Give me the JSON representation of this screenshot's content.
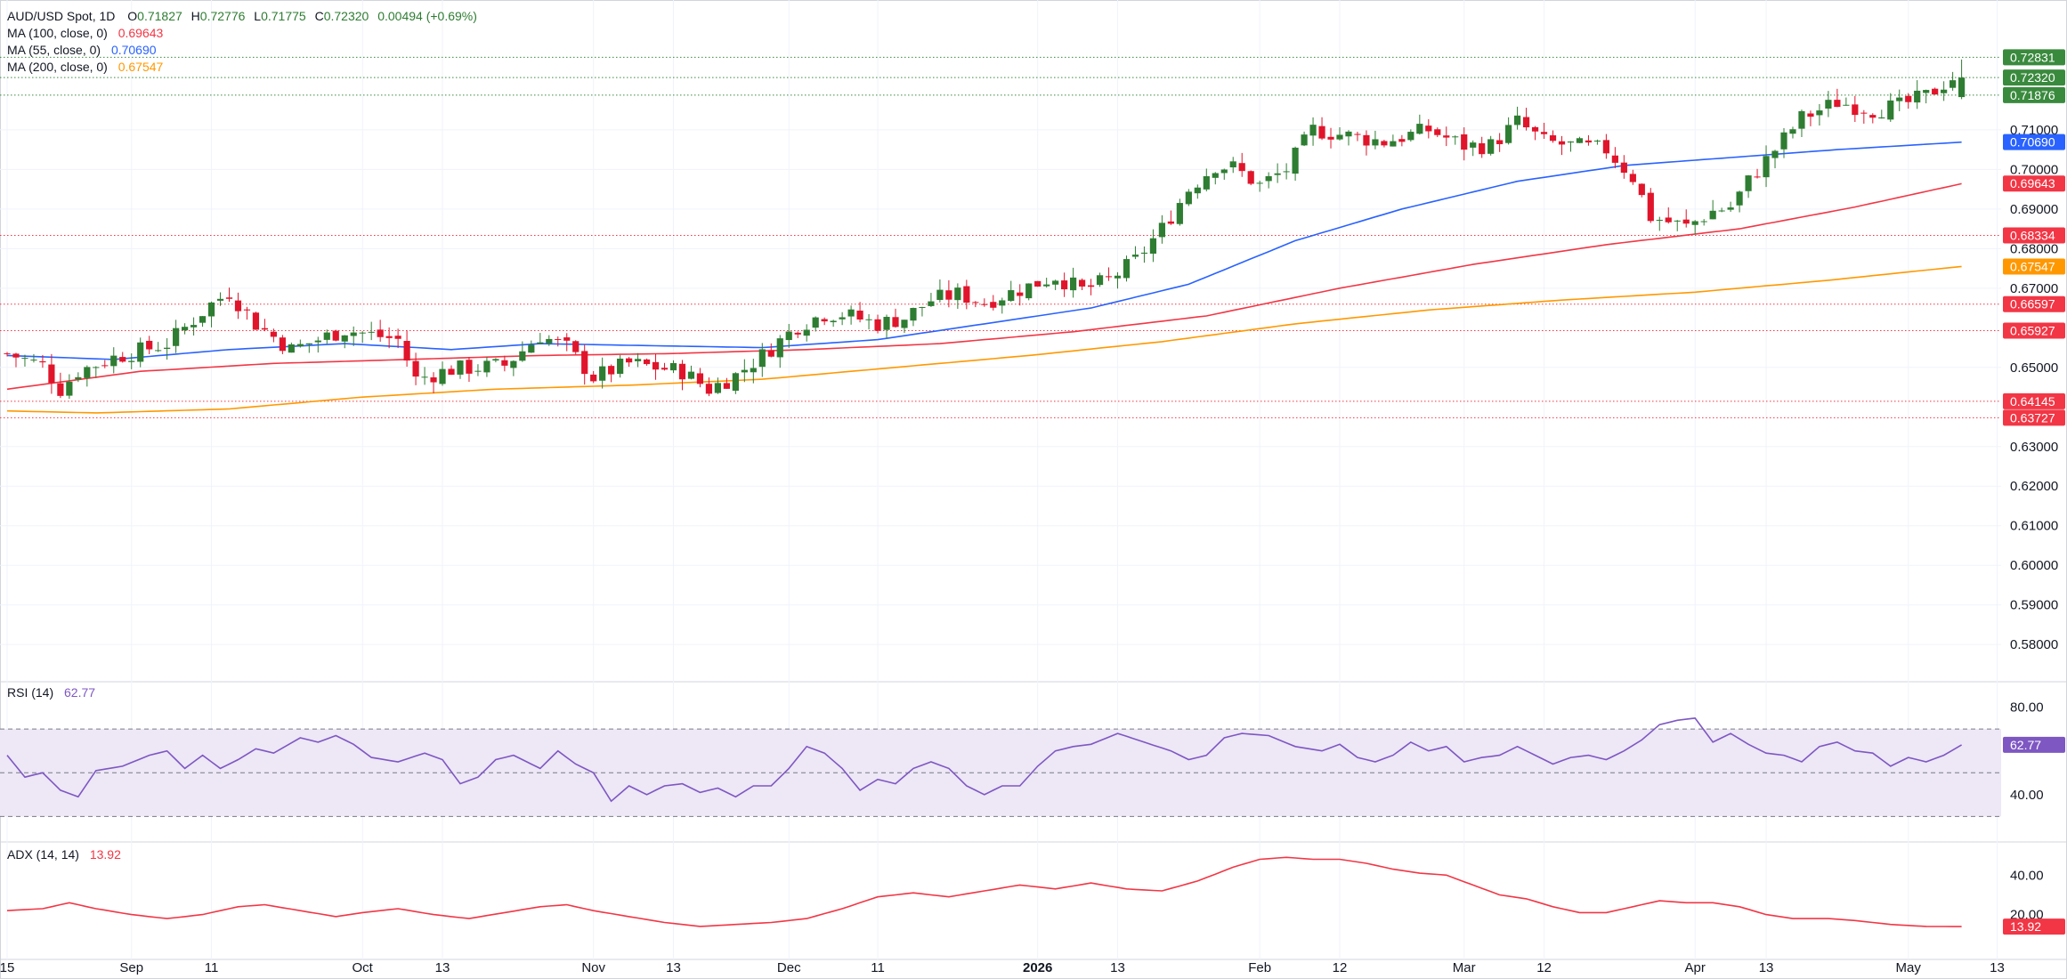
{
  "header": {
    "symbol": "AUD/USD Spot, 1D",
    "ohlc": [
      {
        "label": "O",
        "value": "0.71827"
      },
      {
        "label": "H",
        "value": "0.72776"
      },
      {
        "label": "L",
        "value": "0.71775"
      },
      {
        "label": "C",
        "value": "0.72320"
      }
    ],
    "change": "0.00494 (+0.69%)"
  },
  "indicators": [
    {
      "label": "MA (100, close, 0)",
      "value": "0.69643",
      "color": "#f23645"
    },
    {
      "label": "MA (55, close, 0)",
      "value": "0.70690",
      "color": "#2962ff"
    },
    {
      "label": "MA (200, close, 0)",
      "value": "0.67547",
      "color": "#ff9800"
    }
  ],
  "colors": {
    "up": "#26a69a",
    "up_candle": "#2e7d32",
    "down": "#e0152b",
    "rsi_line": "#7e57c2",
    "rsi_band": "#ede7f6",
    "adx_line": "#f23645",
    "grid": "#f0f3fa",
    "tag_green": "#3a8a3e",
    "tag_red": "#f23645",
    "tag_orange": "#ff9800",
    "tag_blue": "#2962ff",
    "tag_purple": "#7e57c2",
    "level_red": "#f23645",
    "level_green": "#3a8a3e"
  },
  "chart_data": [
    {
      "type": "candlestick",
      "title": "AUD/USD Spot, 1D",
      "ylim": [
        0.5715,
        0.7338
      ],
      "y_ticks": [
        "0.58000",
        "0.59000",
        "0.60000",
        "0.61000",
        "0.62000",
        "0.63000",
        "0.65000",
        "0.67000",
        "0.68000",
        "0.69000",
        "0.70000",
        "0.71000"
      ],
      "x_ticks": [
        "15",
        "Sep",
        "11",
        "Oct",
        "13",
        "Nov",
        "13",
        "Dec",
        "11",
        "2026",
        "13",
        "Feb",
        "12",
        "Mar",
        "12",
        "Apr",
        "13",
        "May",
        "13"
      ],
      "close_anchors": [
        [
          0,
          0.6535
        ],
        [
          4,
          0.6505
        ],
        [
          6,
          0.6445
        ],
        [
          8,
          0.649
        ],
        [
          12,
          0.6525
        ],
        [
          18,
          0.656
        ],
        [
          23,
          0.666
        ],
        [
          25,
          0.669
        ],
        [
          28,
          0.661
        ],
        [
          32,
          0.6545
        ],
        [
          38,
          0.6595
        ],
        [
          44,
          0.657
        ],
        [
          46,
          0.647
        ],
        [
          50,
          0.6495
        ],
        [
          56,
          0.6505
        ],
        [
          60,
          0.658
        ],
        [
          63,
          0.655
        ],
        [
          66,
          0.6475
        ],
        [
          70,
          0.651
        ],
        [
          76,
          0.649
        ],
        [
          79,
          0.6445
        ],
        [
          82,
          0.648
        ],
        [
          85,
          0.653
        ],
        [
          89,
          0.6605
        ],
        [
          92,
          0.6635
        ],
        [
          94,
          0.6635
        ],
        [
          98,
          0.661
        ],
        [
          101,
          0.6625
        ],
        [
          104,
          0.667
        ],
        [
          107,
          0.6685
        ],
        [
          110,
          0.6665
        ],
        [
          115,
          0.6705
        ],
        [
          118,
          0.673
        ],
        [
          121,
          0.6695
        ],
        [
          124,
          0.672
        ],
        [
          127,
          0.677
        ],
        [
          130,
          0.685
        ],
        [
          133,
          0.695
        ],
        [
          136,
          0.701
        ],
        [
          138,
          0.7005
        ],
        [
          141,
          0.696
        ],
        [
          144,
          0.7
        ],
        [
          147,
          0.71
        ],
        [
          151,
          0.7085
        ],
        [
          155,
          0.707
        ],
        [
          160,
          0.71
        ],
        [
          164,
          0.706
        ],
        [
          167,
          0.706
        ],
        [
          170,
          0.712
        ],
        [
          173,
          0.707
        ],
        [
          176,
          0.706
        ],
        [
          180,
          0.705
        ],
        [
          183,
          0.698
        ],
        [
          185,
          0.688
        ],
        [
          189,
          0.6855
        ],
        [
          192,
          0.6895
        ],
        [
          194,
          0.6905
        ],
        [
          196,
          0.697
        ],
        [
          199,
          0.705
        ],
        [
          202,
          0.713
        ],
        [
          206,
          0.717
        ],
        [
          210,
          0.715
        ],
        [
          213,
          0.716
        ],
        [
          216,
          0.7185
        ],
        [
          219,
          0.7232
        ]
      ],
      "ma55": [
        [
          0,
          0.653
        ],
        [
          12,
          0.652
        ],
        [
          25,
          0.6545
        ],
        [
          38,
          0.656
        ],
        [
          50,
          0.6545
        ],
        [
          60,
          0.656
        ],
        [
          72,
          0.6555
        ],
        [
          85,
          0.655
        ],
        [
          98,
          0.657
        ],
        [
          110,
          0.661
        ],
        [
          122,
          0.665
        ],
        [
          133,
          0.671
        ],
        [
          145,
          0.682
        ],
        [
          157,
          0.69
        ],
        [
          170,
          0.697
        ],
        [
          182,
          0.701
        ],
        [
          194,
          0.703
        ],
        [
          206,
          0.705
        ],
        [
          220,
          0.7069
        ]
      ],
      "ma100": [
        [
          0,
          0.6445
        ],
        [
          15,
          0.649
        ],
        [
          30,
          0.651
        ],
        [
          45,
          0.652
        ],
        [
          60,
          0.653
        ],
        [
          75,
          0.6535
        ],
        [
          90,
          0.6545
        ],
        [
          105,
          0.656
        ],
        [
          120,
          0.659
        ],
        [
          135,
          0.663
        ],
        [
          150,
          0.67
        ],
        [
          165,
          0.676
        ],
        [
          180,
          0.681
        ],
        [
          195,
          0.685
        ],
        [
          208,
          0.6905
        ],
        [
          220,
          0.6964
        ]
      ],
      "ma200": [
        [
          0,
          0.639
        ],
        [
          10,
          0.6385
        ],
        [
          25,
          0.6395
        ],
        [
          40,
          0.6425
        ],
        [
          55,
          0.6445
        ],
        [
          70,
          0.6455
        ],
        [
          85,
          0.647
        ],
        [
          100,
          0.65
        ],
        [
          115,
          0.653
        ],
        [
          130,
          0.6565
        ],
        [
          145,
          0.661
        ],
        [
          160,
          0.6645
        ],
        [
          175,
          0.667
        ],
        [
          190,
          0.669
        ],
        [
          205,
          0.672
        ],
        [
          220,
          0.6755
        ]
      ],
      "levels": [
        {
          "value": 0.72831,
          "label": "0.72831",
          "kind": "green"
        },
        {
          "value": 0.71876,
          "label": "0.71876",
          "kind": "green"
        },
        {
          "value": 0.68334,
          "label": "0.68334",
          "kind": "red"
        },
        {
          "value": 0.66597,
          "label": "0.66597",
          "kind": "red"
        },
        {
          "value": 0.65927,
          "label": "0.65927",
          "kind": "red"
        },
        {
          "value": 0.64145,
          "label": "0.64145",
          "kind": "red"
        },
        {
          "value": 0.63727,
          "label": "0.63727",
          "kind": "red"
        }
      ],
      "price_tags": [
        {
          "value": 0.72831,
          "label": "0.72831",
          "kind": "green"
        },
        {
          "value": 0.7232,
          "label": "0.72320",
          "kind": "green"
        },
        {
          "value": 0.71876,
          "label": "0.71876",
          "kind": "green"
        },
        {
          "value": 0.7069,
          "label": "0.70690",
          "kind": "blue"
        },
        {
          "value": 0.69643,
          "label": "0.69643",
          "kind": "red"
        },
        {
          "value": 0.68334,
          "label": "0.68334",
          "kind": "red"
        },
        {
          "value": 0.67547,
          "label": "0.67547",
          "kind": "orange"
        },
        {
          "value": 0.66597,
          "label": "0.66597",
          "kind": "red"
        },
        {
          "value": 0.65927,
          "label": "0.65927",
          "kind": "red"
        },
        {
          "value": 0.64145,
          "label": "0.64145",
          "kind": "red"
        },
        {
          "value": 0.63727,
          "label": "0.63727",
          "kind": "red"
        }
      ]
    },
    {
      "type": "line",
      "title": "RSI (14)",
      "value": "62.77",
      "ylim": [
        20,
        90
      ],
      "y_ticks": [
        "80.00",
        "40.00"
      ],
      "band": [
        30,
        70
      ],
      "midline": 50,
      "anchors": [
        [
          0,
          58
        ],
        [
          2,
          48
        ],
        [
          4,
          50
        ],
        [
          6,
          42
        ],
        [
          8,
          39
        ],
        [
          10,
          51
        ],
        [
          13,
          53
        ],
        [
          16,
          58
        ],
        [
          18,
          60
        ],
        [
          20,
          52
        ],
        [
          22,
          58
        ],
        [
          24,
          52
        ],
        [
          26,
          56
        ],
        [
          28,
          61
        ],
        [
          30,
          59
        ],
        [
          33,
          66
        ],
        [
          35,
          64
        ],
        [
          37,
          67
        ],
        [
          39,
          63
        ],
        [
          41,
          57
        ],
        [
          44,
          55
        ],
        [
          47,
          59
        ],
        [
          49,
          56
        ],
        [
          51,
          45
        ],
        [
          53,
          48
        ],
        [
          55,
          56
        ],
        [
          57,
          58
        ],
        [
          60,
          52
        ],
        [
          62,
          60
        ],
        [
          64,
          54
        ],
        [
          66,
          50
        ],
        [
          68,
          37
        ],
        [
          70,
          44
        ],
        [
          72,
          40
        ],
        [
          74,
          44
        ],
        [
          76,
          45
        ],
        [
          78,
          41
        ],
        [
          80,
          43
        ],
        [
          82,
          39
        ],
        [
          84,
          44
        ],
        [
          86,
          44
        ],
        [
          88,
          52
        ],
        [
          90,
          62
        ],
        [
          92,
          59
        ],
        [
          94,
          52
        ],
        [
          96,
          42
        ],
        [
          98,
          47
        ],
        [
          100,
          45
        ],
        [
          102,
          52
        ],
        [
          104,
          55
        ],
        [
          106,
          52
        ],
        [
          108,
          44
        ],
        [
          110,
          40
        ],
        [
          112,
          44
        ],
        [
          114,
          44
        ],
        [
          116,
          53
        ],
        [
          118,
          60
        ],
        [
          120,
          62
        ],
        [
          122,
          63
        ],
        [
          125,
          68
        ],
        [
          128,
          64
        ],
        [
          131,
          60
        ],
        [
          133,
          56
        ],
        [
          135,
          58
        ],
        [
          137,
          66
        ],
        [
          139,
          68
        ],
        [
          142,
          67
        ],
        [
          145,
          62
        ],
        [
          148,
          60
        ],
        [
          150,
          63
        ],
        [
          152,
          57
        ],
        [
          154,
          55
        ],
        [
          156,
          58
        ],
        [
          158,
          64
        ],
        [
          160,
          60
        ],
        [
          162,
          62
        ],
        [
          164,
          55
        ],
        [
          166,
          57
        ],
        [
          168,
          58
        ],
        [
          170,
          62
        ],
        [
          172,
          58
        ],
        [
          174,
          54
        ],
        [
          176,
          57
        ],
        [
          178,
          58
        ],
        [
          180,
          56
        ],
        [
          182,
          60
        ],
        [
          184,
          65
        ],
        [
          186,
          72
        ],
        [
          188,
          74
        ],
        [
          190,
          75
        ],
        [
          192,
          64
        ],
        [
          194,
          68
        ],
        [
          196,
          63
        ],
        [
          198,
          59
        ],
        [
          200,
          58
        ],
        [
          202,
          55
        ],
        [
          204,
          62
        ],
        [
          206,
          64
        ],
        [
          208,
          60
        ],
        [
          210,
          59
        ],
        [
          212,
          53
        ],
        [
          214,
          57
        ],
        [
          216,
          55
        ],
        [
          218,
          58
        ],
        [
          220,
          62.77
        ]
      ]
    },
    {
      "type": "line",
      "title": "ADX (14, 14)",
      "value": "13.92",
      "ylim": [
        0,
        55
      ],
      "y_ticks": [
        "40.00",
        "20.00"
      ],
      "anchors": [
        [
          0,
          22
        ],
        [
          4,
          23
        ],
        [
          7,
          26
        ],
        [
          10,
          23
        ],
        [
          14,
          20
        ],
        [
          18,
          18
        ],
        [
          22,
          20
        ],
        [
          26,
          24
        ],
        [
          29,
          25
        ],
        [
          33,
          22
        ],
        [
          37,
          19
        ],
        [
          40,
          21
        ],
        [
          44,
          23
        ],
        [
          48,
          20
        ],
        [
          52,
          18
        ],
        [
          56,
          21
        ],
        [
          60,
          24
        ],
        [
          63,
          25
        ],
        [
          66,
          22
        ],
        [
          70,
          19
        ],
        [
          74,
          16
        ],
        [
          78,
          14
        ],
        [
          82,
          15
        ],
        [
          86,
          16
        ],
        [
          90,
          18
        ],
        [
          94,
          23
        ],
        [
          98,
          29
        ],
        [
          102,
          31
        ],
        [
          106,
          29
        ],
        [
          110,
          32
        ],
        [
          114,
          35
        ],
        [
          118,
          33
        ],
        [
          122,
          36
        ],
        [
          126,
          33
        ],
        [
          130,
          32
        ],
        [
          134,
          37
        ],
        [
          138,
          44
        ],
        [
          141,
          48
        ],
        [
          144,
          49
        ],
        [
          147,
          48
        ],
        [
          150,
          48
        ],
        [
          153,
          46
        ],
        [
          156,
          43
        ],
        [
          159,
          41
        ],
        [
          162,
          40
        ],
        [
          165,
          35
        ],
        [
          168,
          30
        ],
        [
          171,
          28
        ],
        [
          174,
          24
        ],
        [
          177,
          21
        ],
        [
          180,
          21
        ],
        [
          183,
          24
        ],
        [
          186,
          27
        ],
        [
          189,
          26
        ],
        [
          192,
          26
        ],
        [
          195,
          24
        ],
        [
          198,
          20
        ],
        [
          201,
          18
        ],
        [
          205,
          18
        ],
        [
          208,
          17
        ],
        [
          212,
          15
        ],
        [
          216,
          14
        ],
        [
          220,
          13.92
        ]
      ]
    }
  ]
}
